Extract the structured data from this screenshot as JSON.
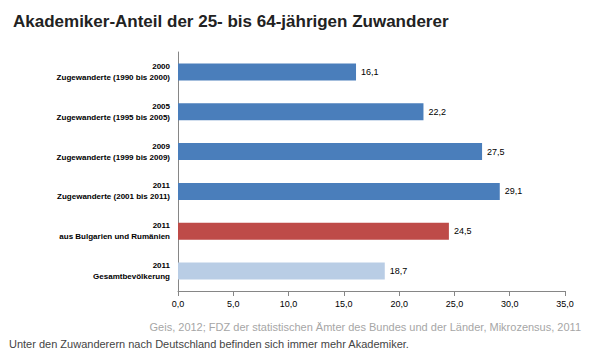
{
  "chart_data": {
    "type": "bar",
    "title": "Akademiker-Anteil der 25- bis 64-jährigen Zuwanderer",
    "source": "Geis, 2012; FDZ der statistischen Ämter des Bundes und der Länder, Mikrozensus, 2011",
    "caption": "Unter den Zuwanderern nach Deutschland befinden sich immer mehr Akademiker.",
    "orientation": "horizontal",
    "categories": [
      "2000\nZugewanderte (1990 bis 2000)",
      "2005\nZugewanderte (1995 bis 2005)",
      "2009\nZugewanderte (1999 bis 2009)",
      "2011\nZugewanderte (2001 bis 2011)",
      "2011\naus Bulgarien und Rumänien",
      "2011\nGesamtbevölkerung"
    ],
    "values": [
      16.1,
      22.2,
      27.5,
      29.1,
      24.5,
      18.7
    ],
    "value_labels": [
      "16,1",
      "22,2",
      "27,5",
      "29,1",
      "24,5",
      "18,7"
    ],
    "colors": [
      "#4a7ebb",
      "#4a7ebb",
      "#4a7ebb",
      "#4a7ebb",
      "#be4b48",
      "#b9cde5"
    ],
    "xlim": [
      0,
      35
    ],
    "xticks": [
      {
        "value": 0,
        "label": "0,0"
      },
      {
        "value": 5,
        "label": "5,0"
      },
      {
        "value": 10,
        "label": "10,0"
      },
      {
        "value": 15,
        "label": "15,0"
      },
      {
        "value": 20,
        "label": "20,0"
      },
      {
        "value": 25,
        "label": "25,0"
      },
      {
        "value": 30,
        "label": "30,0"
      },
      {
        "value": 35,
        "label": "35,0"
      }
    ],
    "grid": false,
    "data_labels": true
  }
}
